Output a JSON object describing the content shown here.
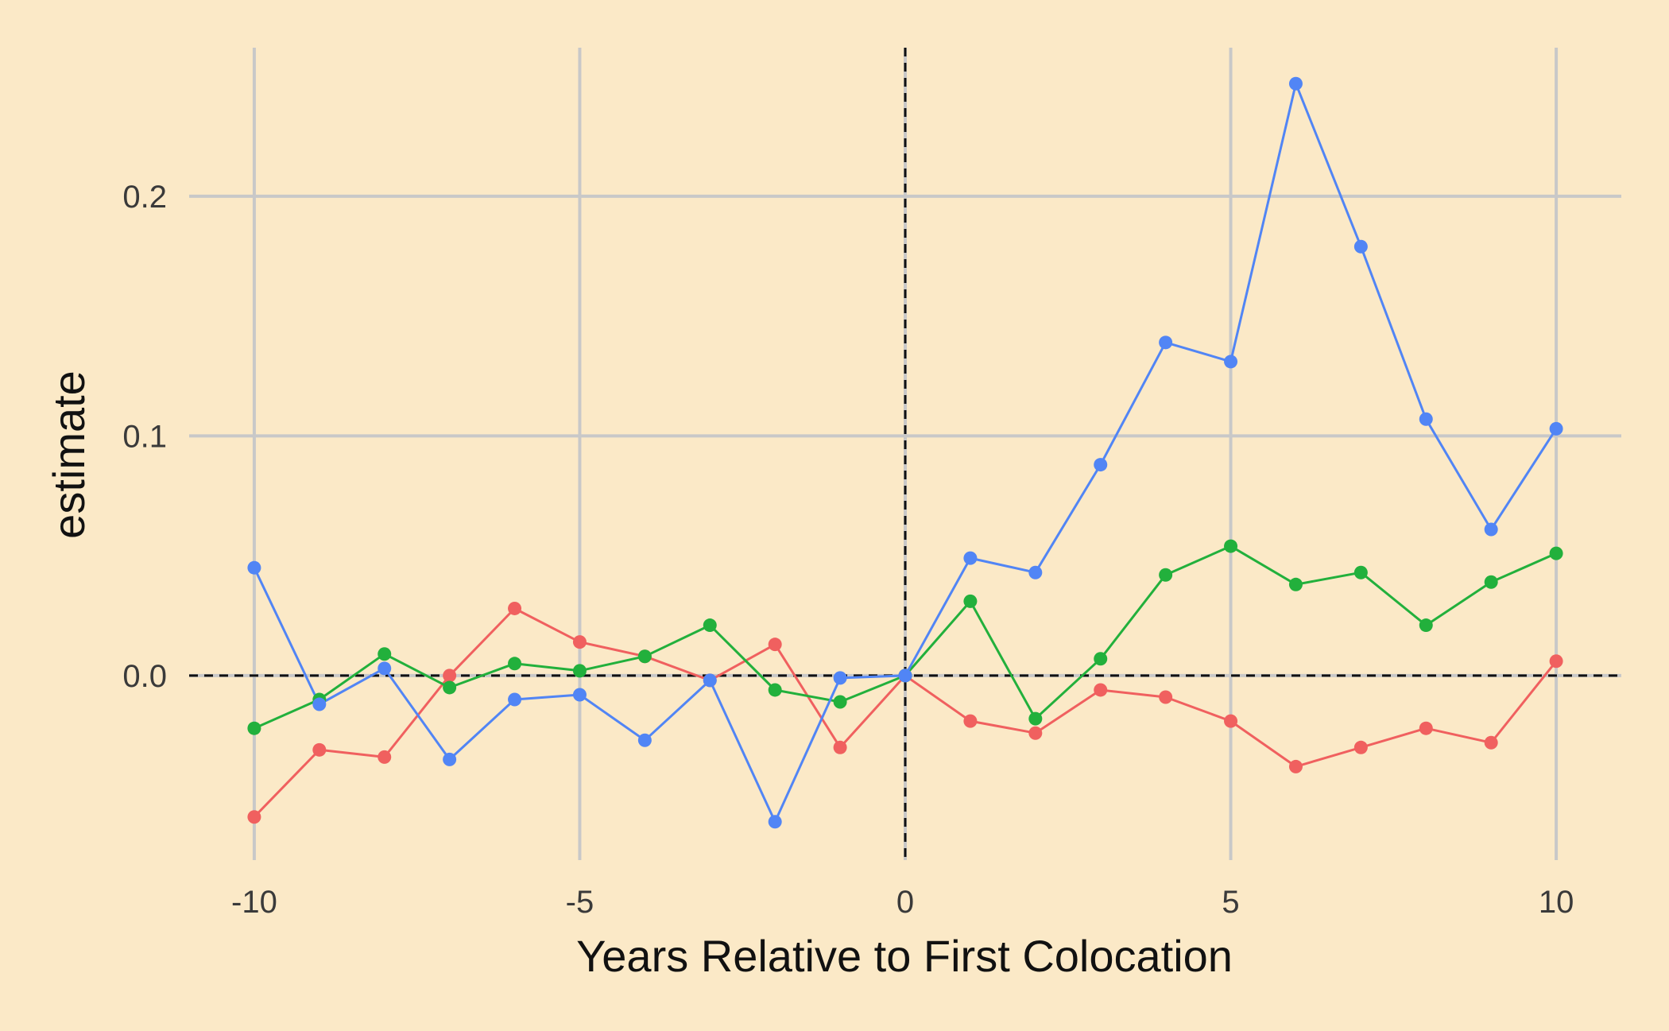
{
  "chart_data": {
    "type": "line",
    "title": "",
    "xlabel": "Years Relative to First Colocation",
    "ylabel": "estimate",
    "xlim": [
      -11,
      11
    ],
    "ylim": [
      -0.077,
      0.262
    ],
    "xticks": [
      -10,
      -5,
      0,
      5,
      10
    ],
    "xtick_labels": [
      "-10",
      "-5",
      "0",
      "5",
      "10"
    ],
    "yticks": [
      0.0,
      0.1,
      0.2
    ],
    "ytick_labels": [
      "0.0",
      "0.1",
      "0.2"
    ],
    "grid": true,
    "reference_lines": {
      "x": 0,
      "y": 0,
      "style": "dashed"
    },
    "x": [
      -10,
      -9,
      -8,
      -7,
      -6,
      -5,
      -4,
      -3,
      -2,
      -1,
      0,
      1,
      2,
      3,
      4,
      5,
      6,
      7,
      8,
      9,
      10
    ],
    "series": [
      {
        "color": "#f0605f",
        "values": [
          -0.059,
          -0.031,
          -0.034,
          0.0,
          0.028,
          0.014,
          0.008,
          -0.002,
          0.013,
          -0.03,
          0.0,
          -0.019,
          -0.024,
          -0.006,
          -0.009,
          -0.019,
          -0.038,
          -0.03,
          -0.022,
          -0.028,
          0.006
        ]
      },
      {
        "color": "#22b03c",
        "values": [
          -0.022,
          -0.01,
          0.009,
          -0.005,
          0.005,
          0.002,
          0.008,
          0.021,
          -0.006,
          -0.011,
          0.0,
          0.031,
          -0.018,
          0.007,
          0.042,
          0.054,
          0.038,
          0.043,
          0.021,
          0.039,
          0.051
        ]
      },
      {
        "color": "#5185f5",
        "values": [
          0.045,
          -0.012,
          0.003,
          -0.035,
          -0.01,
          -0.008,
          -0.027,
          -0.002,
          -0.061,
          -0.001,
          0.0,
          0.049,
          0.043,
          0.088,
          0.139,
          0.131,
          0.247,
          0.179,
          0.107,
          0.061,
          0.103
        ]
      }
    ]
  },
  "colors": {
    "background": "#fbe9c7",
    "grid": "#c8c8c8",
    "reference": "#111111"
  }
}
